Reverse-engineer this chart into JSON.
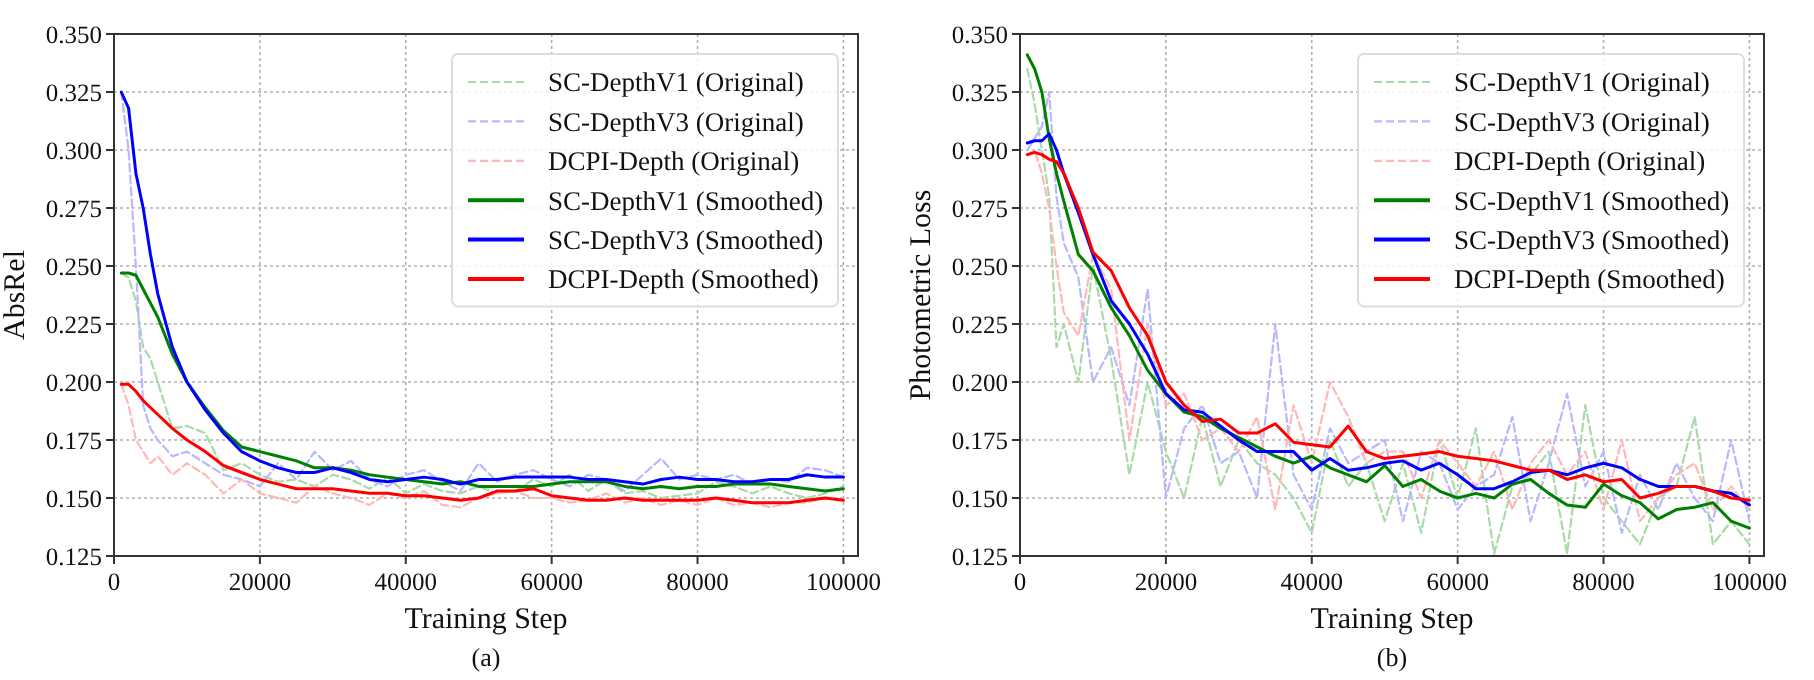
{
  "chart_data": [
    {
      "type": "line",
      "xlabel": "Training Step",
      "ylabel": "AbsRel",
      "annotations": [
        "(a)"
      ],
      "xlim": [
        0,
        102000
      ],
      "ylim": [
        0.125,
        0.35
      ],
      "xticks": [
        0,
        20000,
        40000,
        60000,
        80000,
        100000
      ],
      "yticks": [
        {
          "value": 0.125,
          "label": "0.125"
        },
        {
          "value": 0.15,
          "label": "0.150"
        },
        {
          "value": 0.175,
          "label": "0.175"
        },
        {
          "value": 0.2,
          "label": "0.200"
        },
        {
          "value": 0.225,
          "label": "0.225"
        },
        {
          "value": 0.25,
          "label": "0.250"
        },
        {
          "value": 0.275,
          "label": "0.275"
        },
        {
          "value": 0.3,
          "label": "0.300"
        },
        {
          "value": 0.325,
          "label": "0.325"
        },
        {
          "value": 0.35,
          "label": "0.350"
        }
      ],
      "grid": true,
      "legend": "top right",
      "marker": "none",
      "x": [
        1000,
        2000,
        3000,
        4000,
        5000,
        6000,
        8000,
        10000,
        12500,
        15000,
        17500,
        20000,
        22500,
        25000,
        27500,
        30000,
        32500,
        35000,
        37500,
        40000,
        42500,
        45000,
        47500,
        50000,
        52500,
        55000,
        57500,
        60000,
        62500,
        65000,
        67500,
        70000,
        72500,
        75000,
        77500,
        80000,
        82500,
        85000,
        87500,
        90000,
        92500,
        95000,
        97500,
        100000
      ],
      "series": [
        {
          "name": "SC-DepthV1 (Original)",
          "color": "#a8dba8",
          "line_style": "dashed",
          "values": [
            0.247,
            0.245,
            0.235,
            0.215,
            0.21,
            0.2,
            0.18,
            0.181,
            0.178,
            0.162,
            0.165,
            0.16,
            0.157,
            0.158,
            0.155,
            0.16,
            0.158,
            0.154,
            0.159,
            0.152,
            0.156,
            0.153,
            0.152,
            0.155,
            0.152,
            0.153,
            0.158,
            0.155,
            0.16,
            0.153,
            0.158,
            0.152,
            0.153,
            0.15,
            0.151,
            0.152,
            0.157,
            0.155,
            0.152,
            0.155,
            0.152,
            0.15,
            0.152,
            0.155
          ]
        },
        {
          "name": "SC-DepthV3 (Original)",
          "color": "#b8b8ff",
          "line_style": "dashed",
          "values": [
            0.325,
            0.3,
            0.25,
            0.19,
            0.18,
            0.175,
            0.168,
            0.17,
            0.165,
            0.16,
            0.158,
            0.155,
            0.165,
            0.158,
            0.17,
            0.162,
            0.166,
            0.158,
            0.155,
            0.16,
            0.162,
            0.157,
            0.153,
            0.165,
            0.157,
            0.16,
            0.162,
            0.158,
            0.155,
            0.16,
            0.158,
            0.153,
            0.16,
            0.167,
            0.158,
            0.16,
            0.158,
            0.16,
            0.156,
            0.158,
            0.157,
            0.163,
            0.162,
            0.159
          ]
        },
        {
          "name": "DCPI-Depth (Original)",
          "color": "#ffb8b8",
          "line_style": "dashed",
          "values": [
            0.199,
            0.19,
            0.175,
            0.17,
            0.165,
            0.168,
            0.16,
            0.165,
            0.16,
            0.152,
            0.158,
            0.152,
            0.15,
            0.148,
            0.155,
            0.152,
            0.15,
            0.147,
            0.152,
            0.15,
            0.153,
            0.147,
            0.146,
            0.15,
            0.152,
            0.153,
            0.15,
            0.15,
            0.148,
            0.149,
            0.152,
            0.148,
            0.15,
            0.147,
            0.149,
            0.147,
            0.15,
            0.147,
            0.148,
            0.146,
            0.148,
            0.148,
            0.15,
            0.149
          ]
        },
        {
          "name": "SC-DepthV1 (Smoothed)",
          "color": "#008000",
          "line_style": "solid",
          "values": [
            0.247,
            0.247,
            0.246,
            0.24,
            0.234,
            0.228,
            0.212,
            0.2,
            0.189,
            0.179,
            0.172,
            0.17,
            0.168,
            0.166,
            0.163,
            0.163,
            0.162,
            0.16,
            0.159,
            0.158,
            0.157,
            0.156,
            0.157,
            0.155,
            0.155,
            0.155,
            0.155,
            0.156,
            0.157,
            0.157,
            0.157,
            0.155,
            0.154,
            0.155,
            0.154,
            0.155,
            0.155,
            0.156,
            0.156,
            0.156,
            0.155,
            0.154,
            0.153,
            0.154
          ]
        },
        {
          "name": "SC-DepthV3 (Smoothed)",
          "color": "#0000ff",
          "line_style": "solid",
          "values": [
            0.325,
            0.318,
            0.29,
            0.275,
            0.255,
            0.238,
            0.215,
            0.2,
            0.188,
            0.178,
            0.17,
            0.166,
            0.163,
            0.161,
            0.161,
            0.163,
            0.161,
            0.158,
            0.157,
            0.158,
            0.159,
            0.158,
            0.156,
            0.158,
            0.158,
            0.159,
            0.159,
            0.159,
            0.159,
            0.158,
            0.158,
            0.157,
            0.156,
            0.158,
            0.159,
            0.158,
            0.158,
            0.157,
            0.157,
            0.158,
            0.158,
            0.16,
            0.159,
            0.159
          ]
        },
        {
          "name": "DCPI-Depth (Smoothed)",
          "color": "#ff0000",
          "line_style": "solid",
          "values": [
            0.199,
            0.199,
            0.196,
            0.192,
            0.189,
            0.186,
            0.18,
            0.175,
            0.17,
            0.164,
            0.161,
            0.158,
            0.156,
            0.154,
            0.154,
            0.154,
            0.153,
            0.152,
            0.152,
            0.151,
            0.151,
            0.15,
            0.149,
            0.15,
            0.153,
            0.153,
            0.154,
            0.151,
            0.15,
            0.149,
            0.149,
            0.15,
            0.149,
            0.149,
            0.149,
            0.149,
            0.15,
            0.149,
            0.148,
            0.148,
            0.148,
            0.149,
            0.15,
            0.149
          ]
        }
      ]
    },
    {
      "type": "line",
      "xlabel": "Training Step",
      "ylabel": "Photometric Loss",
      "annotations": [
        "(b)"
      ],
      "xlim": [
        0,
        102000
      ],
      "ylim": [
        0.125,
        0.35
      ],
      "xticks": [
        0,
        20000,
        40000,
        60000,
        80000,
        100000
      ],
      "yticks": [
        {
          "value": 0.125,
          "label": "0.125"
        },
        {
          "value": 0.15,
          "label": "0.150"
        },
        {
          "value": 0.175,
          "label": "0.175"
        },
        {
          "value": 0.2,
          "label": "0.200"
        },
        {
          "value": 0.225,
          "label": "0.225"
        },
        {
          "value": 0.25,
          "label": "0.250"
        },
        {
          "value": 0.275,
          "label": "0.275"
        },
        {
          "value": 0.3,
          "label": "0.300"
        },
        {
          "value": 0.325,
          "label": "0.325"
        },
        {
          "value": 0.35,
          "label": "0.350"
        }
      ],
      "grid": true,
      "legend": "top right",
      "marker": "none",
      "x": [
        1000,
        2000,
        3000,
        4000,
        5000,
        6000,
        8000,
        10000,
        12500,
        15000,
        17500,
        20000,
        22500,
        25000,
        27500,
        30000,
        32500,
        35000,
        37500,
        40000,
        42500,
        45000,
        47500,
        50000,
        52500,
        55000,
        57500,
        60000,
        62500,
        65000,
        67500,
        70000,
        72500,
        75000,
        77500,
        80000,
        82500,
        85000,
        87500,
        90000,
        92500,
        95000,
        97500,
        100000
      ],
      "series": [
        {
          "name": "SC-DepthV1 (Original)",
          "color": "#a8dba8",
          "line_style": "dashed",
          "values": [
            0.335,
            0.32,
            0.3,
            0.28,
            0.215,
            0.225,
            0.2,
            0.25,
            0.21,
            0.16,
            0.2,
            0.17,
            0.15,
            0.185,
            0.155,
            0.175,
            0.165,
            0.16,
            0.15,
            0.135,
            0.175,
            0.155,
            0.165,
            0.14,
            0.165,
            0.135,
            0.175,
            0.15,
            0.18,
            0.126,
            0.155,
            0.16,
            0.17,
            0.126,
            0.19,
            0.15,
            0.14,
            0.13,
            0.15,
            0.155,
            0.185,
            0.13,
            0.14,
            0.13
          ]
        },
        {
          "name": "SC-DepthV3 (Original)",
          "color": "#b8b8ff",
          "line_style": "dashed",
          "values": [
            0.3,
            0.305,
            0.31,
            0.325,
            0.28,
            0.26,
            0.245,
            0.2,
            0.215,
            0.19,
            0.24,
            0.15,
            0.18,
            0.19,
            0.165,
            0.17,
            0.15,
            0.225,
            0.16,
            0.145,
            0.18,
            0.165,
            0.17,
            0.175,
            0.14,
            0.17,
            0.165,
            0.145,
            0.155,
            0.16,
            0.185,
            0.14,
            0.165,
            0.195,
            0.155,
            0.17,
            0.135,
            0.16,
            0.145,
            0.165,
            0.15,
            0.14,
            0.175,
            0.14
          ]
        },
        {
          "name": "DCPI-Depth (Original)",
          "color": "#ffb8b8",
          "line_style": "dashed",
          "values": [
            0.298,
            0.3,
            0.29,
            0.275,
            0.25,
            0.23,
            0.22,
            0.255,
            0.24,
            0.175,
            0.225,
            0.19,
            0.195,
            0.175,
            0.18,
            0.17,
            0.185,
            0.145,
            0.19,
            0.165,
            0.2,
            0.185,
            0.165,
            0.17,
            0.17,
            0.15,
            0.175,
            0.165,
            0.155,
            0.17,
            0.145,
            0.165,
            0.175,
            0.16,
            0.17,
            0.145,
            0.175,
            0.14,
            0.15,
            0.16,
            0.165,
            0.145,
            0.155,
            0.145
          ]
        },
        {
          "name": "SC-DepthV1 (Smoothed)",
          "color": "#008000",
          "line_style": "solid",
          "values": [
            0.341,
            0.335,
            0.325,
            0.305,
            0.29,
            0.278,
            0.255,
            0.248,
            0.232,
            0.22,
            0.205,
            0.195,
            0.187,
            0.185,
            0.18,
            0.176,
            0.172,
            0.168,
            0.165,
            0.168,
            0.163,
            0.16,
            0.157,
            0.164,
            0.155,
            0.158,
            0.153,
            0.15,
            0.152,
            0.15,
            0.156,
            0.158,
            0.152,
            0.147,
            0.146,
            0.156,
            0.151,
            0.148,
            0.141,
            0.145,
            0.146,
            0.148,
            0.14,
            0.137
          ]
        },
        {
          "name": "SC-DepthV3 (Smoothed)",
          "color": "#0000ff",
          "line_style": "solid",
          "values": [
            0.303,
            0.304,
            0.304,
            0.307,
            0.3,
            0.29,
            0.273,
            0.255,
            0.235,
            0.225,
            0.212,
            0.195,
            0.188,
            0.187,
            0.181,
            0.175,
            0.17,
            0.17,
            0.17,
            0.162,
            0.167,
            0.162,
            0.163,
            0.165,
            0.166,
            0.162,
            0.165,
            0.16,
            0.154,
            0.154,
            0.157,
            0.161,
            0.162,
            0.16,
            0.163,
            0.165,
            0.163,
            0.158,
            0.155,
            0.155,
            0.155,
            0.153,
            0.152,
            0.147
          ]
        },
        {
          "name": "DCPI-Depth (Smoothed)",
          "color": "#ff0000",
          "line_style": "solid",
          "values": [
            0.298,
            0.299,
            0.298,
            0.296,
            0.295,
            0.29,
            0.275,
            0.256,
            0.248,
            0.232,
            0.22,
            0.2,
            0.19,
            0.183,
            0.184,
            0.178,
            0.178,
            0.182,
            0.174,
            0.173,
            0.172,
            0.181,
            0.17,
            0.167,
            0.168,
            0.169,
            0.17,
            0.168,
            0.167,
            0.166,
            0.164,
            0.162,
            0.162,
            0.158,
            0.16,
            0.157,
            0.158,
            0.15,
            0.152,
            0.155,
            0.155,
            0.153,
            0.15,
            0.149
          ]
        }
      ]
    }
  ]
}
